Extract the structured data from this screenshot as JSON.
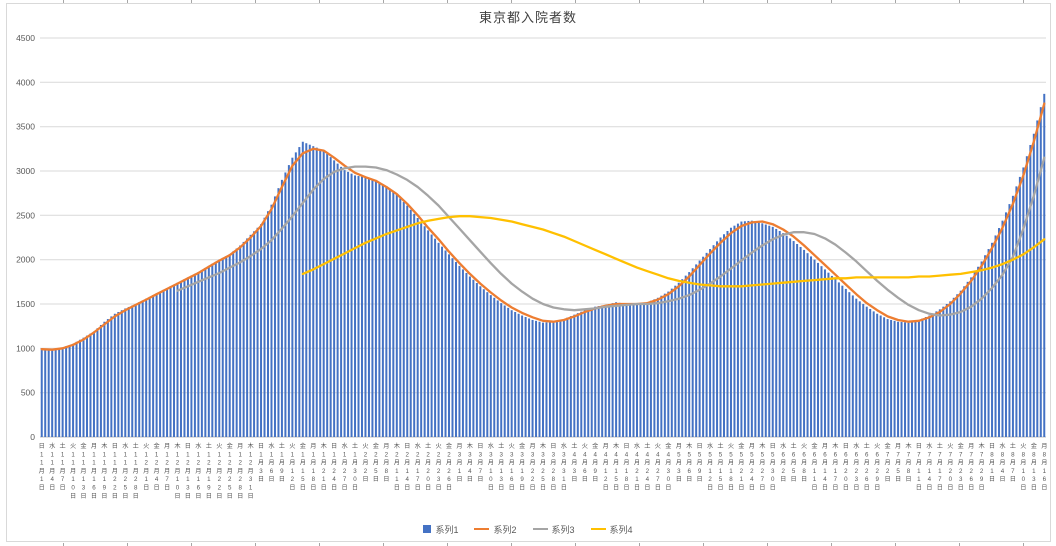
{
  "title": "東京都入院者数",
  "colors": {
    "gridline": "#d9d9d9",
    "axis_line": "#bfbfbf",
    "axis_text": "#595959",
    "title_text": "#404040",
    "series1_blue": "#4472C4",
    "series2_orange": "#ED7D31",
    "series3_gray": "#A5A5A5",
    "series4_yellow": "#FFC000"
  },
  "chart_data": {
    "type": "bar",
    "title": "東京都入院者数",
    "xlabel": "",
    "ylabel": "",
    "ylim": [
      0,
      4500
    ],
    "yticks": [
      0,
      500,
      1000,
      1500,
      2000,
      2500,
      3000,
      3500,
      4000,
      4500
    ],
    "grid": true,
    "legend_position": "bottom",
    "bars_per_label": 3,
    "x_label_style": "vertical stacked characters: weekday / month / 月 / day / 日",
    "categories": [
      "日 11/1",
      "水 11/4",
      "土 11/7",
      "火 11/10",
      "金 11/13",
      "月 11/16",
      "木 11/19",
      "日 11/22",
      "水 11/25",
      "土 11/28",
      "火 12/1",
      "金 12/4",
      "月 12/7",
      "木 12/10",
      "日 12/13",
      "水 12/16",
      "土 12/19",
      "火 12/22",
      "金 12/25",
      "月 12/28",
      "木 12/31",
      "日 1/3",
      "水 1/6",
      "土 1/9",
      "火 1/12",
      "金 1/15",
      "月 1/18",
      "木 1/21",
      "日 1/24",
      "水 1/27",
      "土 1/30",
      "火 2/2",
      "金 2/5",
      "月 2/8",
      "木 2/11",
      "日 2/14",
      "水 2/17",
      "土 2/20",
      "火 2/23",
      "金 2/26",
      "月 3/1",
      "木 3/4",
      "日 3/7",
      "水 3/10",
      "土 3/13",
      "火 3/16",
      "金 3/19",
      "月 3/22",
      "木 3/25",
      "日 3/28",
      "水 3/31",
      "土 4/3",
      "火 4/6",
      "金 4/9",
      "月 4/12",
      "木 4/15",
      "日 4/18",
      "水 4/21",
      "土 4/24",
      "火 4/27",
      "金 4/30",
      "月 5/3",
      "木 5/6",
      "日 5/9",
      "水 5/12",
      "土 5/15",
      "火 5/18",
      "金 5/21",
      "月 5/24",
      "木 5/27",
      "日 5/30",
      "水 6/2",
      "土 6/5",
      "火 6/8",
      "金 6/11",
      "月 6/14",
      "木 6/17",
      "日 6/20",
      "水 6/23",
      "土 6/26",
      "火 6/29",
      "金 7/2",
      "月 7/5",
      "木 7/8",
      "日 7/11",
      "水 7/14",
      "土 7/17",
      "火 7/20",
      "金 7/23",
      "月 7/26",
      "木 7/29",
      "日 8/1",
      "水 8/4",
      "土 8/7",
      "火 8/10",
      "金 8/13",
      "月 8/16"
    ],
    "series": [
      {
        "name": "系列1",
        "type": "bar",
        "color": "#4472C4",
        "values": [
          1000,
          980,
          1010,
          1050,
          1120,
          1190,
          1300,
          1390,
          1450,
          1500,
          1560,
          1620,
          1680,
          1740,
          1800,
          1860,
          1930,
          2000,
          2060,
          2160,
          2280,
          2400,
          2620,
          2900,
          3150,
          3330,
          3280,
          3230,
          3120,
          3010,
          2950,
          2930,
          2890,
          2830,
          2730,
          2610,
          2470,
          2330,
          2190,
          2060,
          1930,
          1810,
          1700,
          1600,
          1510,
          1430,
          1370,
          1320,
          1290,
          1300,
          1330,
          1380,
          1430,
          1470,
          1490,
          1520,
          1500,
          1490,
          1520,
          1570,
          1640,
          1740,
          1860,
          1990,
          2120,
          2250,
          2360,
          2430,
          2440,
          2410,
          2370,
          2300,
          2210,
          2110,
          2000,
          1890,
          1780,
          1670,
          1560,
          1470,
          1390,
          1330,
          1300,
          1290,
          1320,
          1370,
          1440,
          1530,
          1650,
          1800,
          1980,
          2190,
          2440,
          2720,
          3040,
          3420,
          3870
        ]
      },
      {
        "name": "系列2",
        "type": "line",
        "color": "#ED7D31",
        "values": [
          990,
          985,
          1000,
          1040,
          1100,
          1180,
          1270,
          1360,
          1430,
          1490,
          1550,
          1610,
          1670,
          1730,
          1790,
          1850,
          1920,
          1990,
          2050,
          2140,
          2250,
          2380,
          2570,
          2820,
          3060,
          3200,
          3250,
          3230,
          3150,
          3060,
          2980,
          2930,
          2890,
          2820,
          2740,
          2630,
          2500,
          2360,
          2230,
          2090,
          1960,
          1840,
          1730,
          1630,
          1540,
          1460,
          1400,
          1350,
          1310,
          1300,
          1320,
          1360,
          1410,
          1450,
          1480,
          1500,
          1500,
          1500,
          1510,
          1550,
          1610,
          1700,
          1810,
          1940,
          2070,
          2190,
          2300,
          2380,
          2420,
          2430,
          2400,
          2340,
          2260,
          2160,
          2050,
          1940,
          1830,
          1720,
          1610,
          1510,
          1430,
          1360,
          1320,
          1300,
          1310,
          1350,
          1410,
          1500,
          1620,
          1760,
          1930,
          2130,
          2360,
          2630,
          2950,
          3330,
          3760
        ]
      },
      {
        "name": "系列3",
        "type": "line",
        "color": "#A5A5A5",
        "values": [
          null,
          null,
          null,
          null,
          null,
          null,
          null,
          null,
          null,
          null,
          null,
          null,
          null,
          1650,
          1700,
          1750,
          1800,
          1850,
          1910,
          1970,
          2040,
          2120,
          2220,
          2350,
          2490,
          2640,
          2790,
          2910,
          2990,
          3030,
          3050,
          3050,
          3040,
          3010,
          2960,
          2900,
          2820,
          2720,
          2610,
          2480,
          2350,
          2220,
          2090,
          1960,
          1840,
          1730,
          1640,
          1560,
          1500,
          1460,
          1440,
          1430,
          1440,
          1450,
          1470,
          1480,
          1490,
          1500,
          1500,
          1510,
          1530,
          1560,
          1600,
          1660,
          1730,
          1810,
          1900,
          1990,
          2080,
          2160,
          2230,
          2280,
          2310,
          2310,
          2290,
          2240,
          2170,
          2080,
          1980,
          1870,
          1760,
          1660,
          1570,
          1490,
          1430,
          1390,
          1370,
          1380,
          1410,
          1470,
          1560,
          1680,
          1830,
          2030,
          2350,
          2720,
          3150
        ]
      },
      {
        "name": "系列4",
        "type": "line",
        "color": "#FFC000",
        "values": [
          null,
          null,
          null,
          null,
          null,
          null,
          null,
          null,
          null,
          null,
          null,
          null,
          null,
          null,
          null,
          null,
          null,
          null,
          null,
          null,
          null,
          null,
          null,
          null,
          null,
          1840,
          1890,
          1950,
          2010,
          2070,
          2130,
          2190,
          2240,
          2290,
          2330,
          2370,
          2410,
          2440,
          2460,
          2480,
          2490,
          2490,
          2480,
          2470,
          2450,
          2430,
          2400,
          2370,
          2340,
          2300,
          2260,
          2210,
          2160,
          2110,
          2060,
          2010,
          1960,
          1910,
          1870,
          1830,
          1790,
          1760,
          1740,
          1720,
          1710,
          1700,
          1700,
          1700,
          1710,
          1720,
          1730,
          1740,
          1750,
          1760,
          1770,
          1780,
          1790,
          1790,
          1800,
          1800,
          1800,
          1800,
          1800,
          1800,
          1810,
          1810,
          1820,
          1830,
          1840,
          1860,
          1880,
          1910,
          1950,
          2000,
          2060,
          2140,
          2230
        ]
      }
    ]
  }
}
